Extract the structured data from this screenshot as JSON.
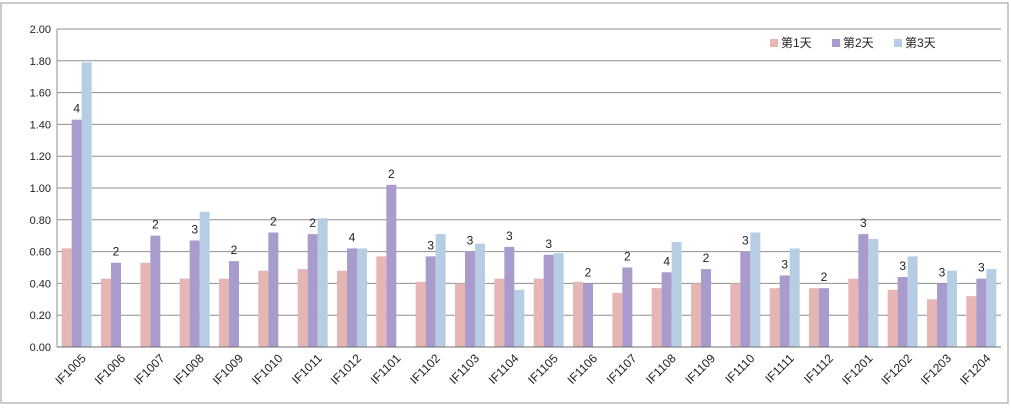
{
  "chart_data": {
    "type": "bar",
    "categories": [
      "IF1005",
      "IF1006",
      "IF1007",
      "IF1008",
      "IF1009",
      "IF1010",
      "IF1011",
      "IF1012",
      "IF1101",
      "IF1102",
      "IF1103",
      "IF1104",
      "IF1105",
      "IF1106",
      "IF1107",
      "IF1108",
      "IF1109",
      "IF1110",
      "IF1111",
      "IF1112",
      "IF1201",
      "IF1202",
      "IF1203",
      "IF1204"
    ],
    "series": [
      {
        "name": "第1天",
        "color": "#E6B6B5",
        "values": [
          0.62,
          0.43,
          0.53,
          0.43,
          0.43,
          0.48,
          0.49,
          0.48,
          0.57,
          0.41,
          0.4,
          0.43,
          0.43,
          0.41,
          0.34,
          0.37,
          0.4,
          0.4,
          0.37,
          0.37,
          0.43,
          0.36,
          0.3,
          0.32
        ]
      },
      {
        "name": "第2天",
        "color": "#A99BCB",
        "values": [
          1.43,
          0.53,
          0.7,
          0.67,
          0.54,
          0.72,
          0.71,
          0.62,
          1.02,
          0.57,
          0.6,
          0.63,
          0.58,
          0.4,
          0.5,
          0.47,
          0.49,
          0.6,
          0.45,
          0.37,
          0.71,
          0.44,
          0.4,
          0.43
        ]
      },
      {
        "name": "第3天",
        "color": "#B7CDE3",
        "values": [
          1.79,
          null,
          null,
          0.85,
          null,
          null,
          0.81,
          0.62,
          null,
          0.71,
          0.65,
          0.36,
          0.59,
          null,
          null,
          0.66,
          null,
          0.72,
          0.62,
          null,
          0.68,
          0.57,
          0.48,
          0.49
        ]
      }
    ],
    "data_labels": [
      "4",
      "2",
      "2",
      "3",
      "2",
      "2",
      "2",
      "4",
      "2",
      "3",
      "3",
      "3",
      "3",
      "2",
      "2",
      "4",
      "2",
      "3",
      "3",
      "2",
      "3",
      "3",
      "3",
      "3"
    ],
    "data_label_series": 1,
    "ylim": [
      0,
      2.0
    ],
    "yticks": [
      "0.00",
      "0.20",
      "0.40",
      "0.60",
      "0.80",
      "1.00",
      "1.20",
      "1.40",
      "1.60",
      "1.80",
      "2.00"
    ],
    "grid": true,
    "legend": "top-right"
  }
}
